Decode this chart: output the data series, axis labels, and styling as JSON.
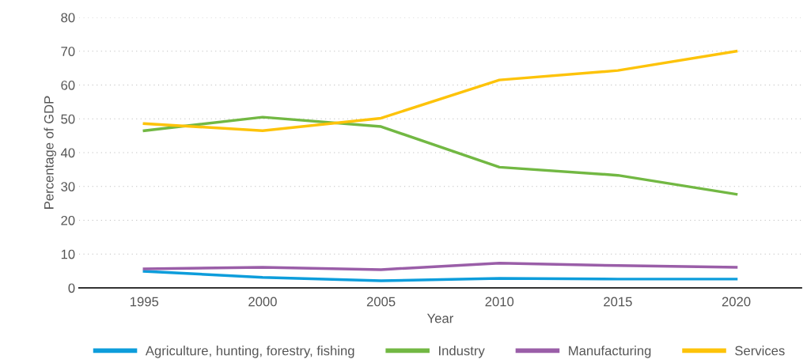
{
  "chart_data": {
    "type": "line",
    "xlabel": "Year",
    "ylabel": "Percentage of GDP",
    "categories": [
      "1995",
      "2000",
      "2005",
      "2010",
      "2015",
      "2020"
    ],
    "series": [
      {
        "name": "Agriculture, hunting, forestry, fishing",
        "color": "#0d9ddb",
        "values": [
          4.9,
          3.1,
          2.1,
          2.8,
          2.6,
          2.6
        ]
      },
      {
        "name": "Industry",
        "color": "#72b843",
        "values": [
          46.5,
          50.5,
          47.7,
          35.7,
          33.3,
          27.7
        ]
      },
      {
        "name": "Manufacturing",
        "color": "#9a5ea8",
        "values": [
          5.6,
          6.1,
          5.4,
          7.3,
          6.6,
          6.1
        ]
      },
      {
        "name": "Services",
        "color": "#fdc30a",
        "values": [
          48.6,
          46.5,
          50.2,
          61.5,
          64.3,
          70.0
        ]
      }
    ],
    "ylim": [
      0,
      80
    ],
    "yticks": [
      0,
      10,
      20,
      30,
      40,
      50,
      60,
      70,
      80
    ],
    "grid": "y",
    "legend": "bottom",
    "marker": "none",
    "line_style": "solid"
  }
}
